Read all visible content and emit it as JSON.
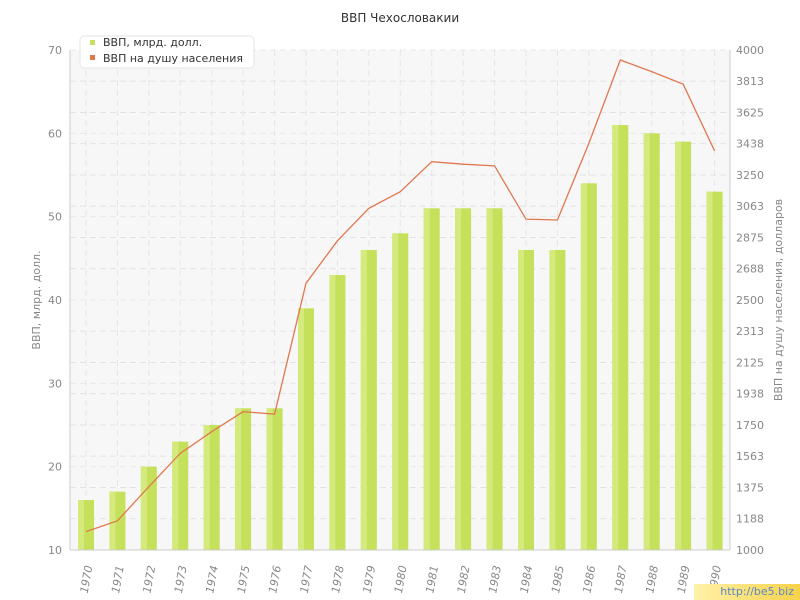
{
  "chart_data": {
    "type": "bar",
    "title": "ВВП Чехословакии",
    "categories": [
      "1970",
      "1971",
      "1972",
      "1973",
      "1974",
      "1975",
      "1976",
      "1977",
      "1978",
      "1979",
      "1980",
      "1981",
      "1982",
      "1983",
      "1984",
      "1985",
      "1986",
      "1987",
      "1988",
      "1989",
      "1990"
    ],
    "series": [
      {
        "name": "ВВП, млрд. долл.",
        "type": "bar",
        "axis": "left",
        "color": "#c5e05a",
        "values": [
          16,
          17,
          20,
          23,
          25,
          27,
          27,
          39,
          43,
          46,
          48,
          51,
          51,
          51,
          46,
          46,
          54,
          61,
          60,
          59,
          53
        ]
      },
      {
        "name": "ВВП на душу населения",
        "type": "line",
        "axis": "right",
        "color": "#e07850",
        "values": [
          1110,
          1175,
          1380,
          1580,
          1710,
          1830,
          1815,
          2600,
          2855,
          3050,
          3150,
          3330,
          3315,
          3305,
          2985,
          2980,
          3440,
          3940,
          3870,
          3795,
          3395
        ]
      }
    ],
    "yaxis_left": {
      "label": "ВВП, млрд. долл.",
      "min": 10,
      "max": 70,
      "ticks": [
        "10",
        "20",
        "30",
        "40",
        "50",
        "60",
        "70"
      ]
    },
    "yaxis_right": {
      "label": "ВВП на душу населения, долларов",
      "min": 1000,
      "max": 4000,
      "ticks": [
        "1000",
        "1188",
        "1375",
        "1563",
        "1750",
        "1938",
        "2125",
        "2313",
        "2500",
        "2688",
        "2875",
        "3063",
        "3250",
        "3438",
        "3625",
        "3813",
        "4000"
      ]
    },
    "grid": true,
    "legend_position": "top-left"
  },
  "watermark": "http://be5.biz"
}
